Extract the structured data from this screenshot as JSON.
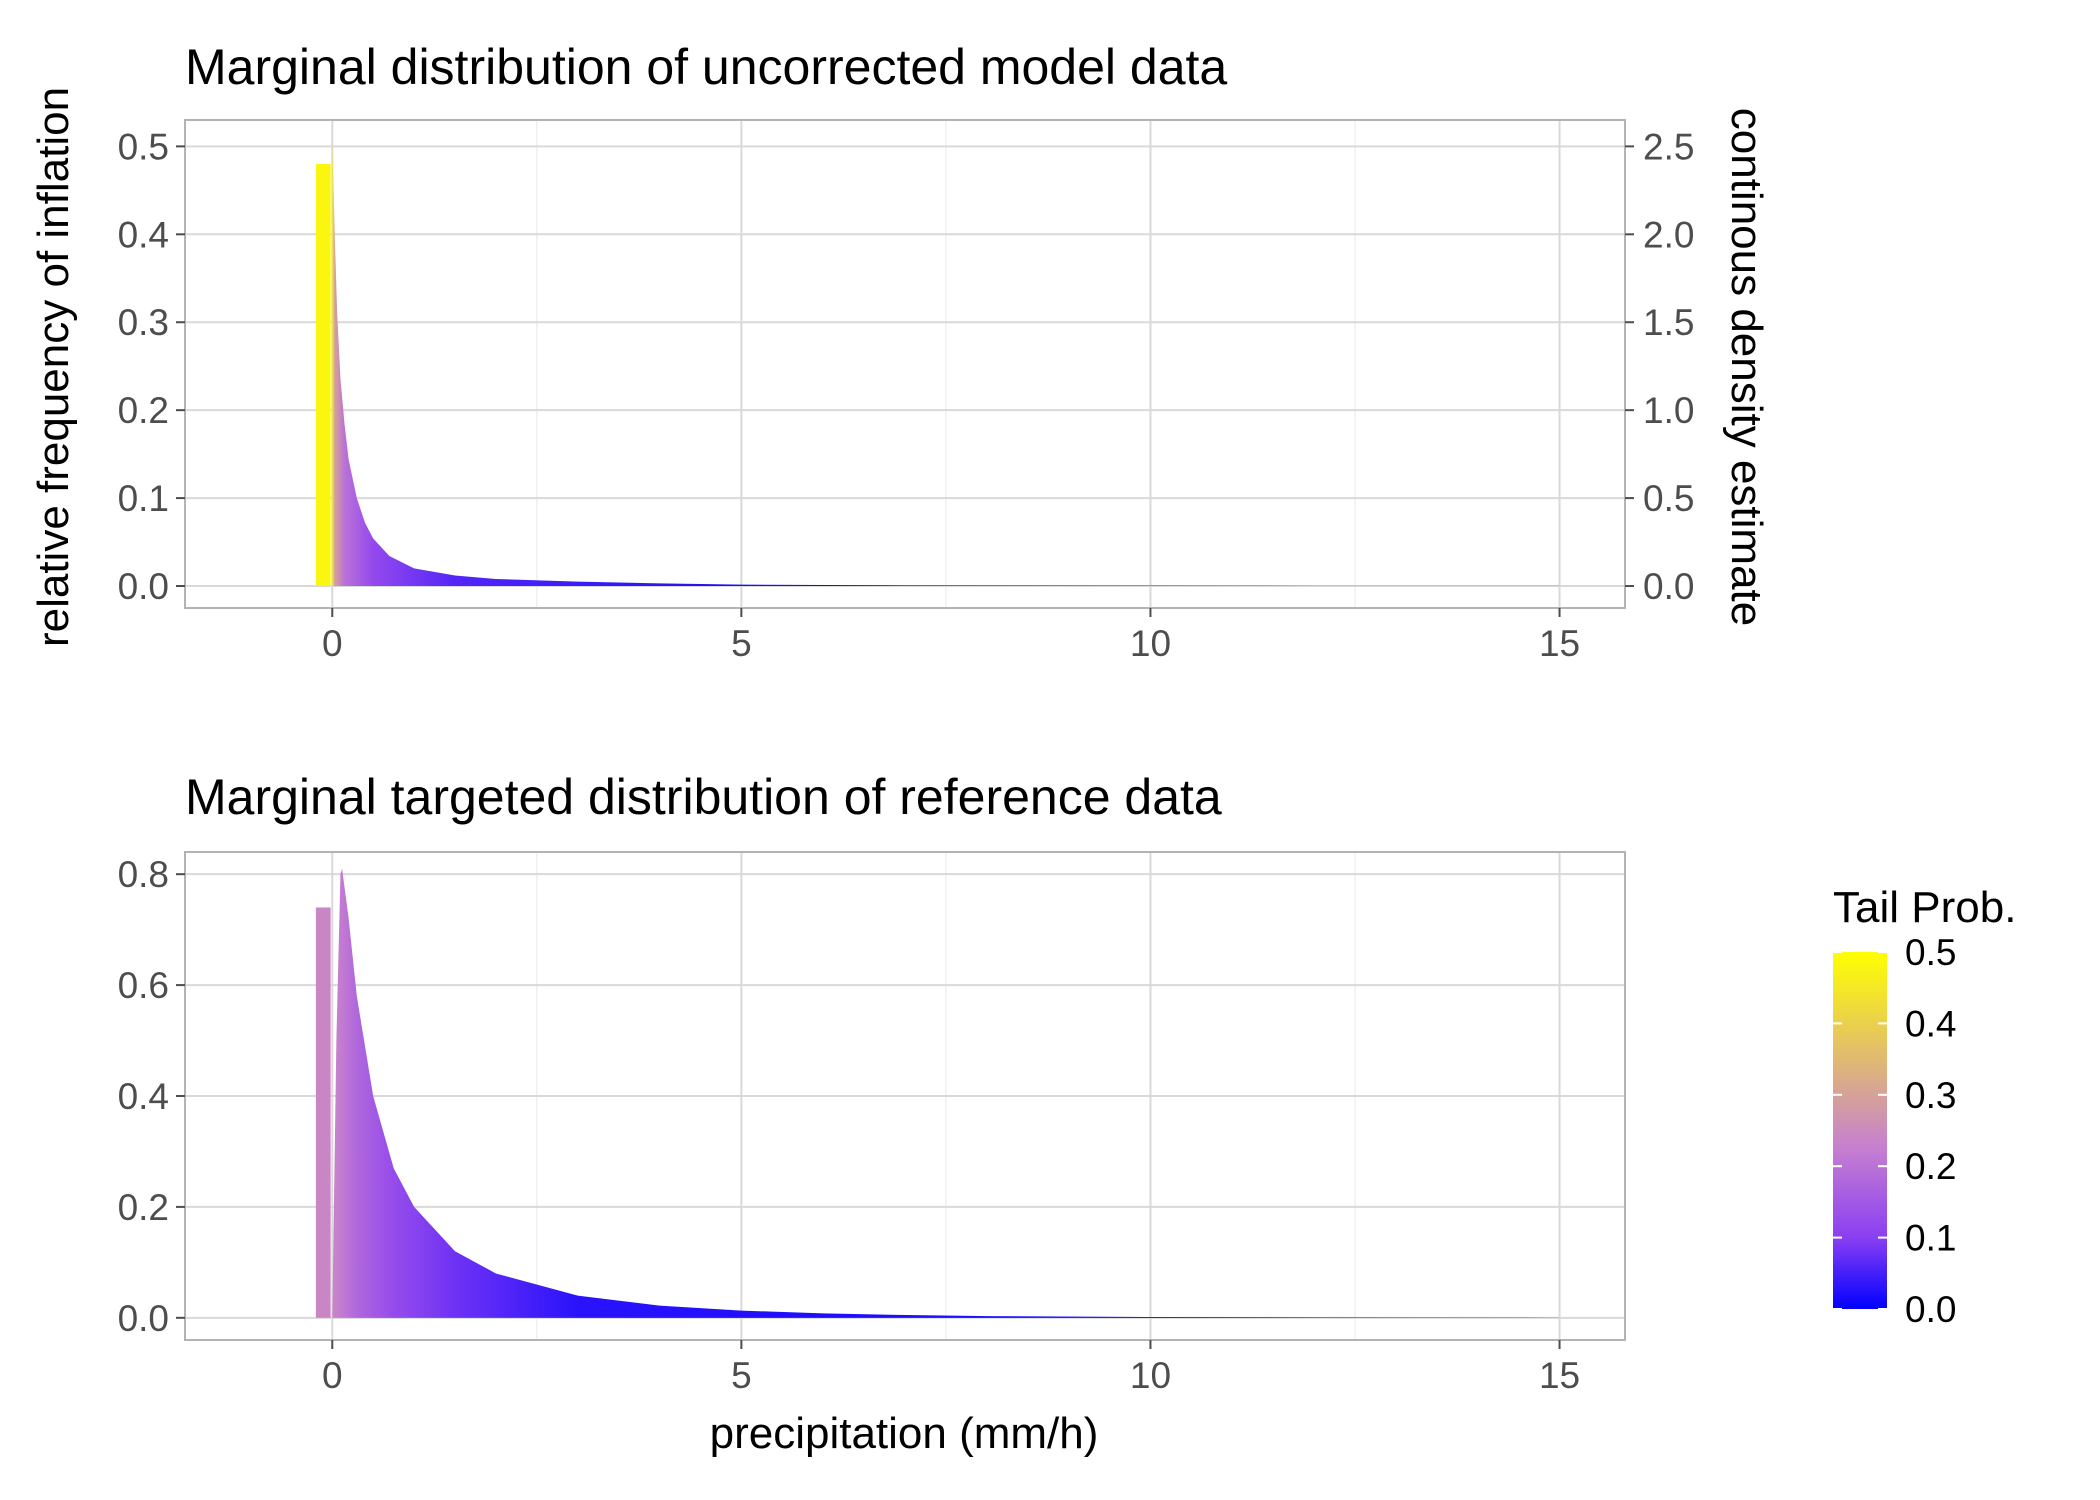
{
  "chart_data": [
    {
      "type": "area",
      "title": "Marginal distribution of uncorrected model data",
      "xlabel": "",
      "ylabel": "relative frequency of inflation",
      "y2label": "continous density estimate",
      "xlim": [
        -1.8,
        15.8
      ],
      "ylim": [
        -0.025,
        0.53
      ],
      "y2lim": [
        -0.125,
        2.65
      ],
      "x_ticks": [
        0,
        5,
        10,
        15
      ],
      "x_tick_labels": [
        "0",
        "5",
        "10",
        "15"
      ],
      "y_ticks": [
        0.0,
        0.1,
        0.2,
        0.3,
        0.4,
        0.5
      ],
      "y_tick_labels": [
        "0.0",
        "0.1",
        "0.2",
        "0.3",
        "0.4",
        "0.5"
      ],
      "y2_ticks": [
        0.0,
        0.5,
        1.0,
        1.5,
        2.0,
        2.5
      ],
      "y2_tick_labels": [
        "0.0",
        "0.5",
        "1.0",
        "1.5",
        "2.0",
        "2.5"
      ],
      "grid": true,
      "inflation_bar": {
        "x": [
          -0.2,
          -0.02
        ],
        "value": 0.48,
        "tail_prob": 0.48
      },
      "density": {
        "x": [
          0.0,
          0.03,
          0.06,
          0.1,
          0.15,
          0.2,
          0.3,
          0.4,
          0.5,
          0.7,
          1.0,
          1.5,
          2.0,
          3.0,
          4.0,
          5.0,
          7.0,
          10.0,
          12.0,
          15.0
        ],
        "y": [
          2.52,
          2.0,
          1.55,
          1.18,
          0.92,
          0.72,
          0.5,
          0.36,
          0.27,
          0.17,
          0.1,
          0.06,
          0.04,
          0.025,
          0.015,
          0.008,
          0.004,
          0.002,
          0.001,
          0.0005
        ]
      },
      "fill_gradient": {
        "x": [
          0.0,
          0.03,
          0.15,
          0.5,
          1.5,
          5.0,
          15.0
        ],
        "tail_prob": [
          0.45,
          0.3,
          0.2,
          0.12,
          0.06,
          0.02,
          0.0
        ]
      }
    },
    {
      "type": "area",
      "title": "Marginal targeted distribution of reference data",
      "xlabel": "precipitation (mm/h)",
      "ylabel": "",
      "xlim": [
        -1.8,
        15.8
      ],
      "ylim": [
        -0.04,
        0.84
      ],
      "x_ticks": [
        0,
        5,
        10,
        15
      ],
      "x_tick_labels": [
        "0",
        "5",
        "10",
        "15"
      ],
      "y_ticks": [
        0.0,
        0.2,
        0.4,
        0.6,
        0.8
      ],
      "y_tick_labels": [
        "0.0",
        "0.2",
        "0.4",
        "0.6",
        "0.8"
      ],
      "grid": true,
      "inflation_bar": {
        "x": [
          -0.2,
          -0.02
        ],
        "value": 0.74,
        "tail_prob": 0.24
      },
      "density": {
        "x": [
          0.0,
          0.05,
          0.1,
          0.12,
          0.2,
          0.3,
          0.5,
          0.75,
          1.0,
          1.5,
          2.0,
          3.0,
          4.0,
          5.0,
          6.0,
          7.0,
          8.0,
          10.0,
          12.0,
          15.0
        ],
        "y": [
          0.0,
          0.5,
          0.8,
          0.81,
          0.72,
          0.58,
          0.4,
          0.27,
          0.2,
          0.12,
          0.08,
          0.04,
          0.022,
          0.013,
          0.008,
          0.005,
          0.003,
          0.0015,
          0.0008,
          0.0002
        ]
      },
      "fill_gradient": {
        "x": [
          0.0,
          0.1,
          0.3,
          0.7,
          1.5,
          3.0,
          15.0
        ],
        "tail_prob": [
          0.24,
          0.22,
          0.18,
          0.13,
          0.08,
          0.03,
          0.0
        ]
      }
    }
  ],
  "legend": {
    "title": "Tail Prob.",
    "labels": [
      "0.5",
      "0.4",
      "0.3",
      "0.2",
      "0.1",
      "0.0"
    ],
    "values": [
      0.5,
      0.4,
      0.3,
      0.2,
      0.1,
      0.0
    ],
    "colors": [
      "#0000ff",
      "#8a3ff2",
      "#c67fd0",
      "#ffff00"
    ],
    "color_stops": [
      0.0,
      0.2,
      0.45,
      1.0
    ]
  },
  "colors": {
    "panel_border": "#b3b3b3",
    "grid_major": "#d9d9d9",
    "grid_minor": "#ececec"
  }
}
